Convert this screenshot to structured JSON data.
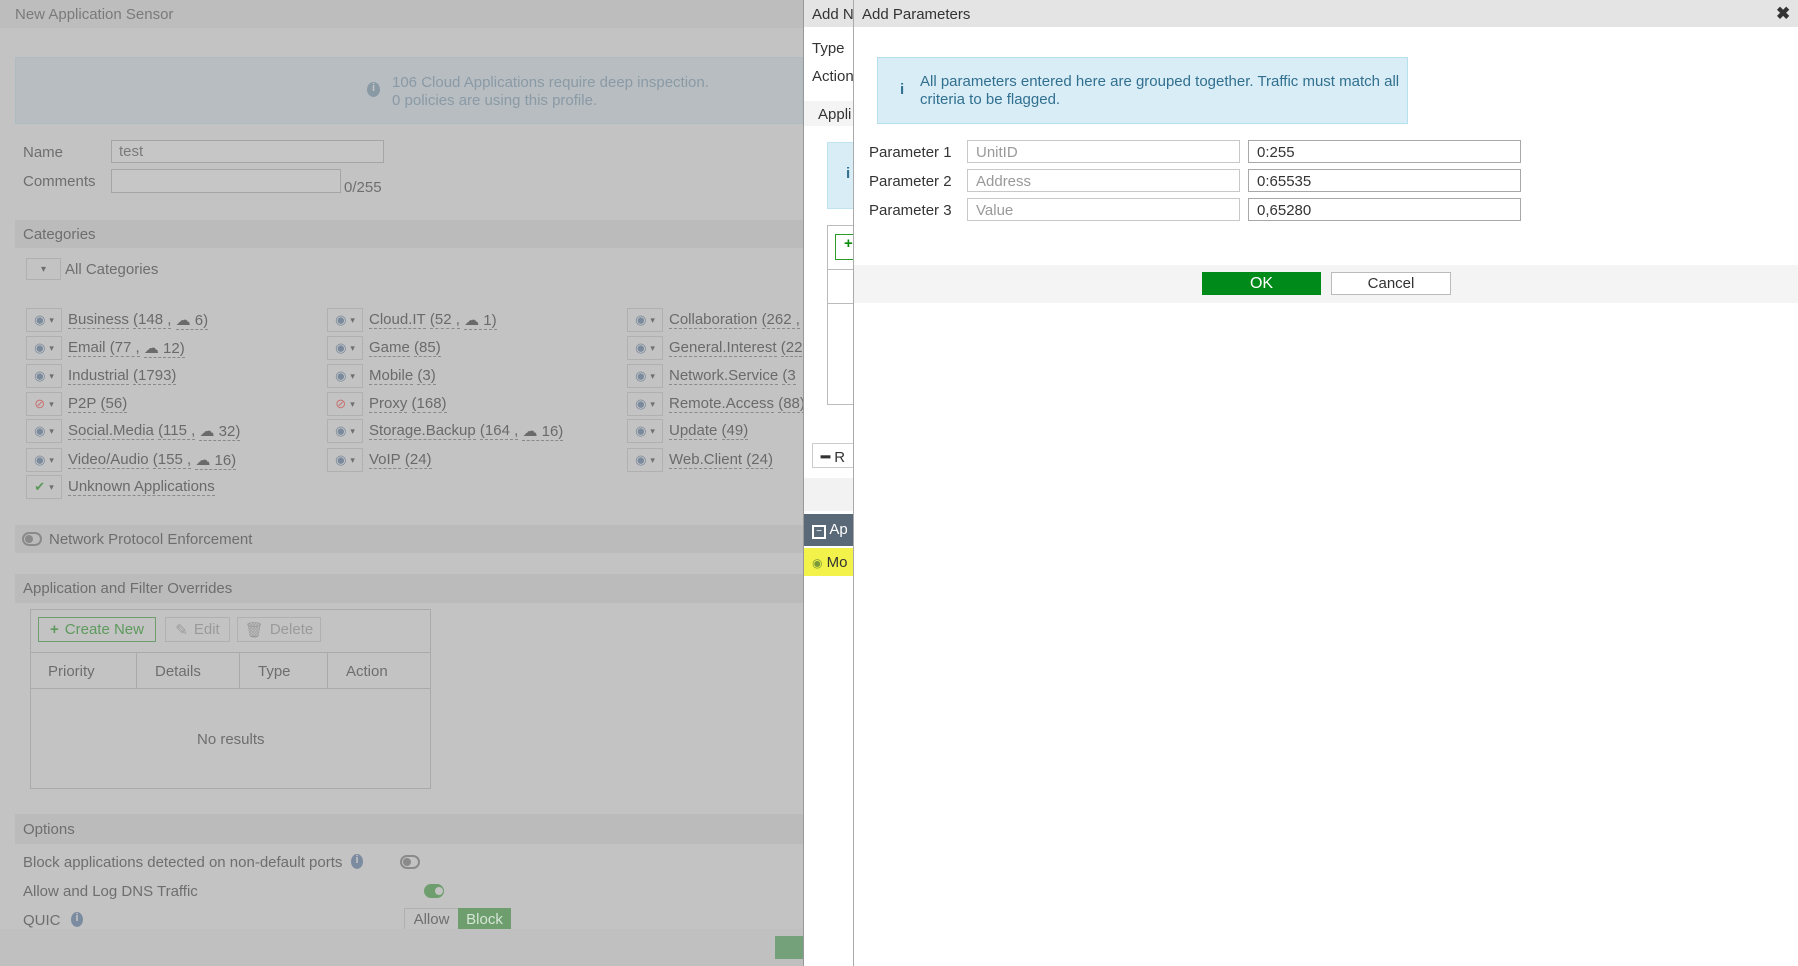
{
  "background_form": {
    "title": "New Application Sensor",
    "info_line1": "106 Cloud Applications require deep inspection.",
    "info_line2": "0 policies are using this profile.",
    "name_label": "Name",
    "name_value": "test",
    "comments_label": "Comments",
    "comments_count": "0/255",
    "categories_header": "Categories",
    "all_categories": "All Categories",
    "categories": [
      {
        "name": "Business",
        "count": "(148 ,",
        "cloud": "6)",
        "action": "monitor"
      },
      {
        "name": "Cloud.IT",
        "count": "(52 ,",
        "cloud": "1)",
        "action": "monitor"
      },
      {
        "name": "Collaboration",
        "count": "(262 ,",
        "cloud": "",
        "action": "monitor"
      },
      {
        "name": "Email",
        "count": "(77 ,",
        "cloud": "12)",
        "action": "monitor"
      },
      {
        "name": "Game",
        "count": "(85)",
        "cloud": "",
        "action": "monitor"
      },
      {
        "name": "General.Interest",
        "count": "(22",
        "cloud": "",
        "action": "monitor"
      },
      {
        "name": "Industrial",
        "count": "(1793)",
        "cloud": "",
        "action": "monitor"
      },
      {
        "name": "Mobile",
        "count": "(3)",
        "cloud": "",
        "action": "monitor"
      },
      {
        "name": "Network.Service",
        "count": "(3",
        "cloud": "",
        "action": "monitor"
      },
      {
        "name": "P2P",
        "count": "(56)",
        "cloud": "",
        "action": "block"
      },
      {
        "name": "Proxy",
        "count": "(168)",
        "cloud": "",
        "action": "block"
      },
      {
        "name": "Remote.Access",
        "count": "(88)",
        "cloud": "",
        "action": "monitor"
      },
      {
        "name": "Social.Media",
        "count": "(115 ,",
        "cloud": "32)",
        "action": "monitor"
      },
      {
        "name": "Storage.Backup",
        "count": "(164 ,",
        "cloud": "16)",
        "action": "monitor"
      },
      {
        "name": "Update",
        "count": "(49)",
        "cloud": "",
        "action": "monitor"
      },
      {
        "name": "Video/Audio",
        "count": "(155 ,",
        "cloud": "16)",
        "action": "monitor"
      },
      {
        "name": "VoIP",
        "count": "(24)",
        "cloud": "",
        "action": "monitor"
      },
      {
        "name": "Web.Client",
        "count": "(24)",
        "cloud": "",
        "action": "monitor"
      },
      {
        "name": "Unknown Applications",
        "count": "",
        "cloud": "",
        "action": "allow"
      }
    ],
    "network_protocol_enforcement": "Network Protocol Enforcement",
    "overrides_header": "Application and Filter Overrides",
    "create_new": "Create New",
    "edit": "Edit",
    "delete": "Delete",
    "columns": [
      "Priority",
      "Details",
      "Type",
      "Action"
    ],
    "no_results": "No results",
    "options_header": "Options",
    "block_nondefault": "Block applications detected on non-default ports",
    "allow_dns": "Allow and Log DNS Traffic",
    "quic": "QUIC",
    "quic_allow": "Allow",
    "quic_block": "Block"
  },
  "middle_panel": {
    "title": "Add N",
    "type": "Type",
    "action": "Action",
    "appl": "Appli",
    "remove": "R",
    "ap": "Ap",
    "mo": "Mo"
  },
  "dialog": {
    "title": "Add Parameters",
    "info": "All parameters entered here are grouped together. Traffic must match all criteria to be flagged.",
    "params": [
      {
        "label": "Parameter 1",
        "name_placeholder": "UnitID",
        "value": "0:255"
      },
      {
        "label": "Parameter 2",
        "name_placeholder": "Address",
        "value": "0:65535"
      },
      {
        "label": "Parameter 3",
        "name_placeholder": "Value",
        "value": "0,65280"
      }
    ],
    "ok": "OK",
    "cancel": "Cancel"
  },
  "colors": {
    "ok_green": "#008a1a",
    "info_bg": "#d9edf7",
    "highlight": "#ffff33"
  }
}
